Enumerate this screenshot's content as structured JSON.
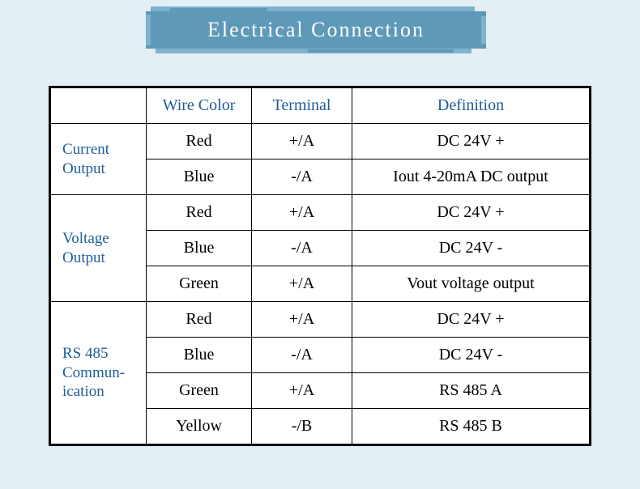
{
  "banner": {
    "title": "Electrical Connection",
    "bg_color": "#5e99b8",
    "bg_color_light": "#7fb2cc",
    "text_color": "#ffffff",
    "title_fontsize": 26
  },
  "page": {
    "background": "#e3eef5",
    "table_background": "#ffffff",
    "border_color": "#000000",
    "header_text_color": "#1f5c99",
    "cell_text_color": "#000000"
  },
  "table": {
    "headers": {
      "wire_color": "Wire Color",
      "terminal": "Terminal",
      "definition": "Definition"
    },
    "groups": [
      {
        "label": "Current Output",
        "rows": [
          {
            "wire": "Red",
            "terminal": "+/A",
            "definition": "DC 24V +"
          },
          {
            "wire": "Blue",
            "terminal": "-/A",
            "definition": "Iout 4-20mA DC output"
          }
        ]
      },
      {
        "label": "Voltage Output",
        "rows": [
          {
            "wire": "Red",
            "terminal": "+/A",
            "definition": "DC 24V +"
          },
          {
            "wire": "Blue",
            "terminal": "-/A",
            "definition": "DC 24V -"
          },
          {
            "wire": "Green",
            "terminal": "+/A",
            "definition": "Vout voltage output"
          }
        ]
      },
      {
        "label": "RS 485 Commun-ication",
        "rows": [
          {
            "wire": "Red",
            "terminal": "+/A",
            "definition": "DC 24V +"
          },
          {
            "wire": "Blue",
            "terminal": "-/A",
            "definition": "DC 24V -"
          },
          {
            "wire": "Green",
            "terminal": "+/A",
            "definition": "RS 485 A"
          },
          {
            "wire": "Yellow",
            "terminal": "-/B",
            "definition": "RS 485 B"
          }
        ]
      }
    ]
  }
}
